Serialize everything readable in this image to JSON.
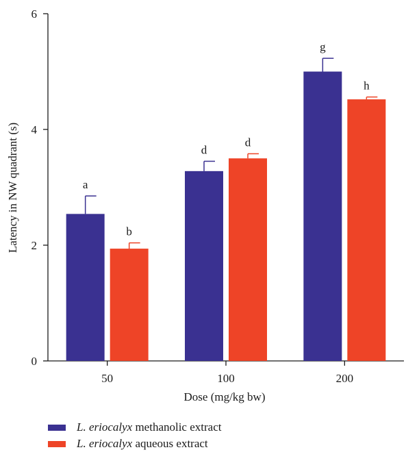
{
  "chart_data": {
    "type": "bar",
    "xlabel": "Dose (mg/kg bw)",
    "ylabel": "Latency in NW quadrant (s)",
    "ylim": [
      0,
      6
    ],
    "yticks": [
      0,
      2,
      4,
      6
    ],
    "categories": [
      "50",
      "100",
      "200"
    ],
    "series": [
      {
        "name_species": "L. eriocalyx",
        "name_rest": "methanolic extract",
        "color": "#3a3191",
        "values": [
          2.54,
          3.28,
          5.0
        ],
        "errors": [
          0.31,
          0.17,
          0.23
        ],
        "labels": [
          "a",
          "d",
          "g"
        ]
      },
      {
        "name_species": "L. eriocalyx",
        "name_rest": "aqueous extract",
        "color": "#ee4427",
        "values": [
          1.94,
          3.5,
          4.52
        ],
        "errors": [
          0.1,
          0.08,
          0.04
        ],
        "labels": [
          "b",
          "d",
          "h"
        ]
      }
    ],
    "legend_position": "bottom-left"
  }
}
